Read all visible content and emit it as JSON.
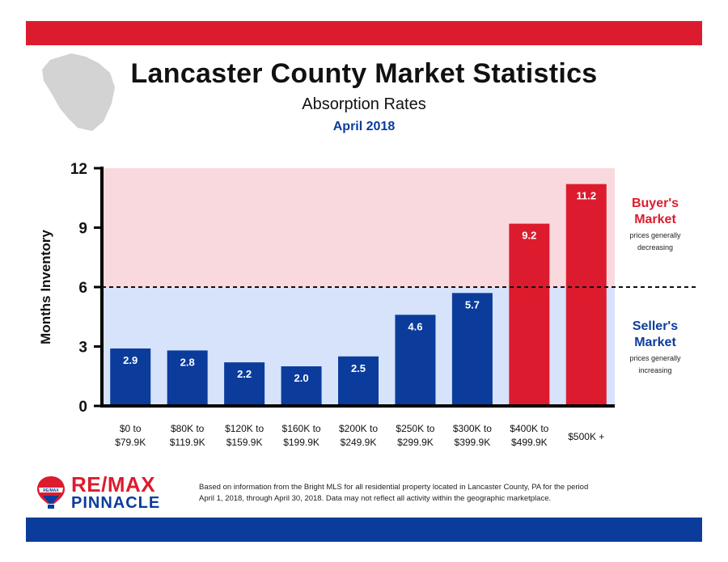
{
  "header": {
    "title": "Lancaster County Market Statistics",
    "subtitle": "Absorption Rates",
    "date": "April 2018"
  },
  "chart_data": {
    "type": "bar",
    "ylabel": "Months Inventory",
    "ylim": [
      0,
      12
    ],
    "yticks": [
      0,
      3,
      6,
      9,
      12
    ],
    "threshold": 6,
    "categories": [
      [
        "$0 to",
        "$79.9K"
      ],
      [
        "$80K to",
        "$119.9K"
      ],
      [
        "$120K to",
        "$159.9K"
      ],
      [
        "$160K to",
        "$199.9K"
      ],
      [
        "$200K to",
        "$249.9K"
      ],
      [
        "$250K to",
        "$299.9K"
      ],
      [
        "$300K to",
        "$399.9K"
      ],
      [
        "$400K to",
        "$499.9K"
      ],
      [
        "$500K +"
      ]
    ],
    "values": [
      2.9,
      2.8,
      2.2,
      2.0,
      2.5,
      4.6,
      5.7,
      9.2,
      11.2
    ],
    "value_labels": [
      "2.9",
      "2.8",
      "2.2",
      "2.0",
      "2.5",
      "4.6",
      "5.7",
      "9.2",
      "11.2"
    ],
    "colors": {
      "seller_bar": "#0b3c9c",
      "buyer_bar": "#dc1c2e",
      "buyer_zone": "#f9d9dd",
      "seller_zone": "#d6e3fb"
    }
  },
  "zones": {
    "buyer": {
      "title_line1": "Buyer's",
      "title_line2": "Market",
      "note_line1": "prices generally",
      "note_line2": "decreasing"
    },
    "seller": {
      "title_line1": "Seller's",
      "title_line2": "Market",
      "note_line1": "prices generally",
      "note_line2": "increasing"
    }
  },
  "logo": {
    "badge": "RE/MAX",
    "brand": "RE/MAX",
    "sub": "PINNACLE"
  },
  "footnote": {
    "line1": "Based on information from the Bright MLS for all residential property located in Lancaster County, PA for the period",
    "line2": "April 1, 2018, through April 30, 2018.  Data may not reflect all activity within the geographic marketplace."
  },
  "icons": {
    "county": "county-map-icon",
    "balloon": "remax-balloon-icon"
  }
}
